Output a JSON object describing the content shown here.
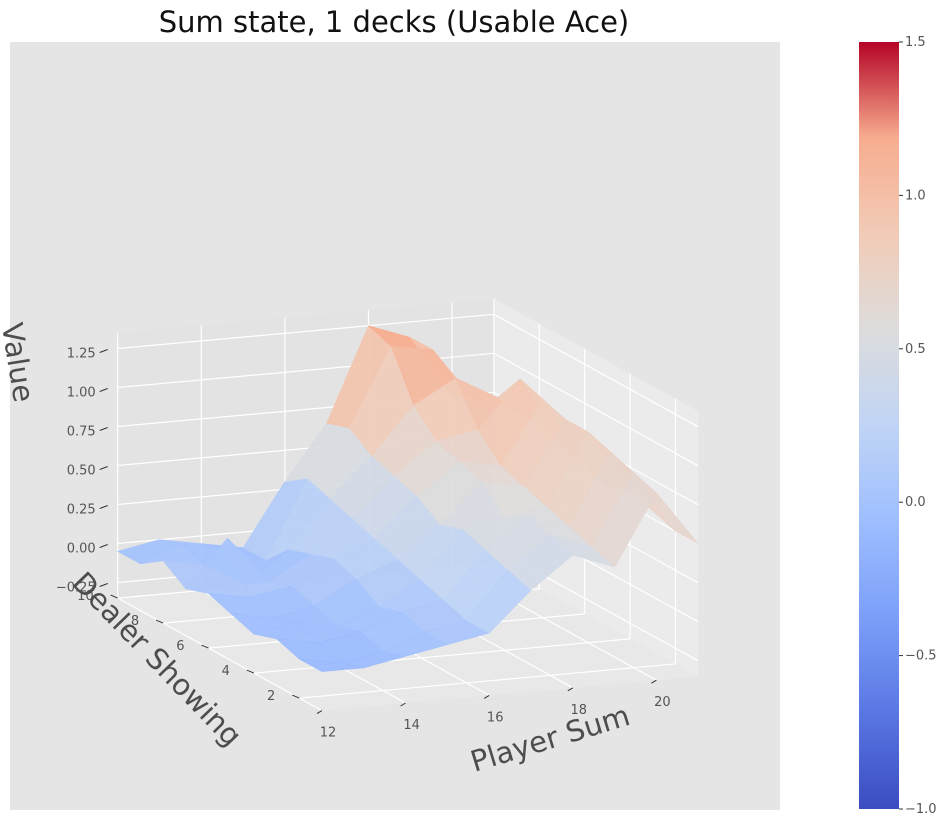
{
  "chart_data": {
    "type": "surface",
    "title": "Sum state, 1 decks (Usable Ace)",
    "xlabel": "Player Sum",
    "ylabel": "Dealer Showing",
    "zlabel": "Value",
    "x": [
      12,
      13,
      14,
      15,
      16,
      17,
      18,
      19,
      20,
      21
    ],
    "y": [
      1,
      2,
      3,
      4,
      5,
      6,
      7,
      8,
      9,
      10
    ],
    "x_ticks": [
      "12",
      "14",
      "16",
      "18",
      "20"
    ],
    "y_ticks": [
      "2",
      "4",
      "6",
      "8",
      "10"
    ],
    "z_ticks": [
      "−0.25",
      "0.00",
      "0.25",
      "0.50",
      "0.75",
      "1.00",
      "1.25"
    ],
    "colorbar_ticks": [
      "−1.0",
      "−0.5",
      "0.0",
      "0.5",
      "1.0",
      "1.5"
    ],
    "colormap": "coolwarm",
    "vmin": -1.0,
    "vmax": 1.5,
    "z": [
      [
        -0.1,
        -0.1,
        -0.05,
        0.0,
        0.05,
        0.3,
        0.5,
        0.4,
        0.85,
        0.5
      ],
      [
        -0.1,
        -0.15,
        -0.1,
        0.0,
        0.05,
        0.35,
        0.55,
        0.45,
        0.9,
        0.5
      ],
      [
        -0.05,
        -0.1,
        -0.05,
        0.05,
        0.1,
        0.4,
        0.6,
        0.5,
        0.95,
        0.55
      ],
      [
        -0.1,
        -0.05,
        -0.1,
        0.0,
        0.15,
        0.45,
        0.5,
        0.55,
        1.0,
        0.6
      ],
      [
        -0.05,
        -0.1,
        -0.05,
        0.1,
        0.2,
        0.4,
        0.65,
        0.6,
        1.0,
        0.55
      ],
      [
        0.0,
        -0.05,
        0.0,
        0.15,
        0.25,
        0.5,
        0.7,
        0.65,
        1.05,
        0.6
      ],
      [
        -0.05,
        0.25,
        -0.05,
        0.1,
        0.3,
        0.55,
        0.75,
        0.8,
        1.1,
        0.65
      ],
      [
        0.05,
        0.0,
        -0.15,
        0.05,
        0.35,
        0.6,
        0.9,
        1.05,
        0.9,
        0.7
      ],
      [
        -0.05,
        0.05,
        0.0,
        -0.1,
        0.4,
        0.7,
        1.2,
        1.15,
        0.8,
        0.75
      ],
      [
        -0.05,
        0.0,
        -0.05,
        -0.1,
        0.3,
        0.65,
        1.25,
        1.15,
        0.75,
        0.7
      ]
    ],
    "zlim": [
      -0.35,
      1.35
    ]
  }
}
